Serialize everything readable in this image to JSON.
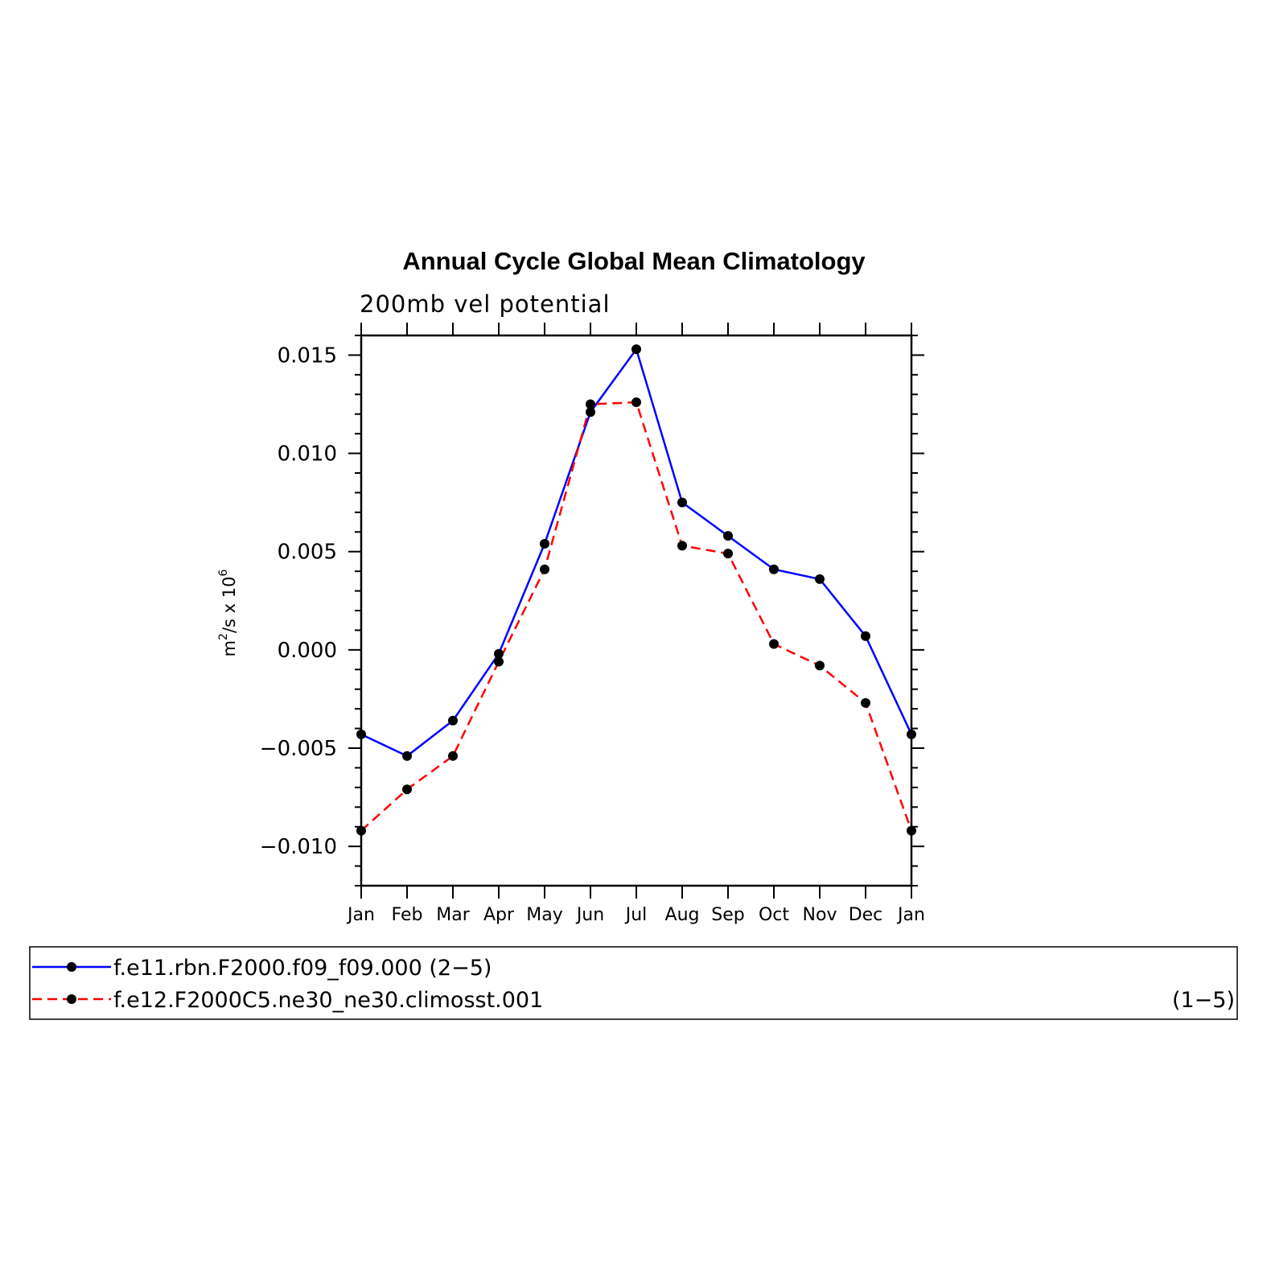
{
  "chart_data": {
    "type": "line",
    "title": "Annual Cycle Global Mean Climatology",
    "subtitle": "200mb vel potential",
    "ylabel": "m²/s x 10⁶",
    "ylabel_base": "m",
    "ylabel_sup1": "2",
    "ylabel_mid": "/s x 10",
    "ylabel_sup2": "6",
    "xlabel": "",
    "categories": [
      "Jan",
      "Feb",
      "Mar",
      "Apr",
      "May",
      "Jun",
      "Jul",
      "Aug",
      "Sep",
      "Oct",
      "Nov",
      "Dec",
      "Jan"
    ],
    "ylim": [
      -0.012,
      0.016
    ],
    "yticks": [
      -0.01,
      -0.005,
      0.0,
      0.005,
      0.01,
      0.015
    ],
    "ytick_labels": [
      "−0.010",
      "−0.005",
      "0.000",
      "0.005",
      "0.010",
      "0.015"
    ],
    "grid": false,
    "series": [
      {
        "name": "f.e11.rbn.F2000.f09_f09.000 (2−5)",
        "legend_label": "f.e11.rbn.F2000.f09_f09.000 (2−5)",
        "color": "#0000ff",
        "dash": "solid",
        "values": [
          -0.0043,
          -0.0054,
          -0.0036,
          -0.0002,
          0.0054,
          0.0121,
          0.0153,
          0.0075,
          0.0058,
          0.0041,
          0.0036,
          0.0007,
          -0.0043
        ]
      },
      {
        "name": "f.e12.F2000C5.ne30_ne30.climosst.001 (1−5)",
        "legend_label": "f.e12.F2000C5.ne30_ne30.climosst.001",
        "legend_suffix": "(1−5)",
        "color": "#ff0000",
        "dash": "dashed",
        "values": [
          -0.0092,
          -0.0071,
          -0.0054,
          -0.0006,
          0.0041,
          0.0125,
          0.0126,
          0.0053,
          0.0049,
          0.0003,
          -0.0008,
          -0.0027,
          -0.0092
        ]
      }
    ],
    "legend_position": "bottom"
  }
}
